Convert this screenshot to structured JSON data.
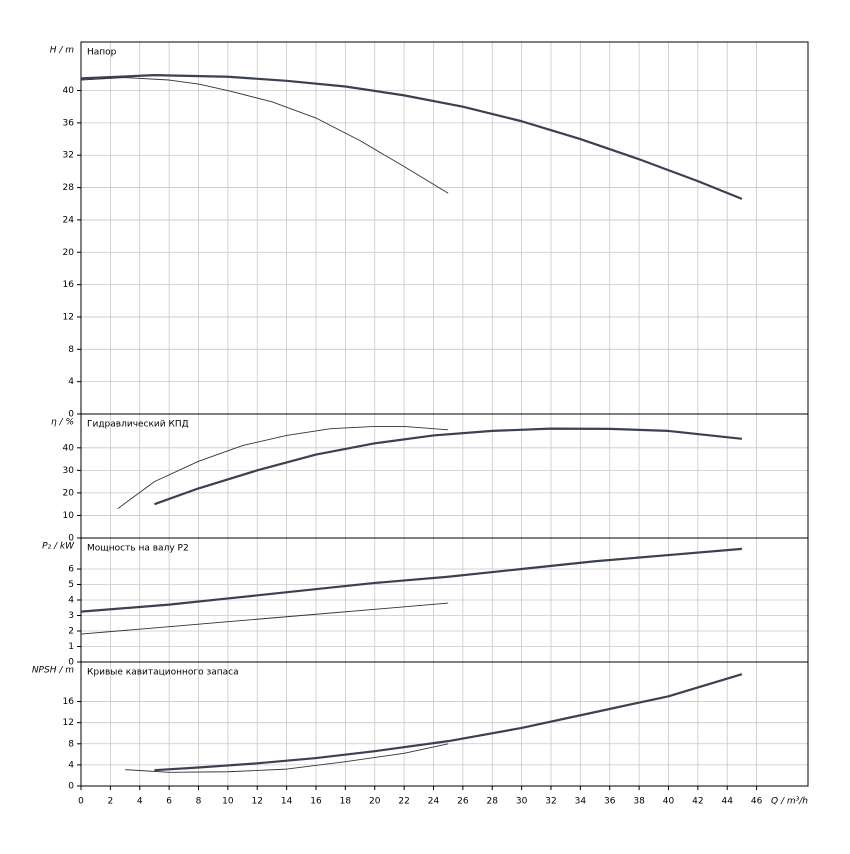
{
  "chart_data": [
    {
      "type": "line",
      "title": "Напор",
      "y_label": "H / m",
      "xlim": [
        0,
        49.5
      ],
      "xticks": [
        0,
        2,
        4,
        6,
        8,
        10,
        12,
        14,
        16,
        18,
        20,
        22,
        24,
        26,
        28,
        30,
        32,
        34,
        36,
        38,
        40,
        42,
        44,
        46
      ],
      "ylim": [
        0,
        46
      ],
      "yticks": [
        0,
        4,
        8,
        12,
        16,
        20,
        24,
        28,
        32,
        36,
        40
      ],
      "grid": true,
      "series": [
        {
          "color": "#3a4150",
          "linewidth": 2.2,
          "x": [
            0,
            5,
            10,
            14,
            18,
            22,
            26,
            30,
            34,
            38,
            42,
            45
          ],
          "values": [
            41.5,
            41.9,
            41.7,
            41.2,
            40.5,
            39.4,
            38,
            36.2,
            34,
            31.5,
            28.8,
            26.6
          ]
        },
        {
          "color": "#333333",
          "linewidth": 0.9,
          "x": [
            0,
            3,
            6,
            8,
            10,
            13,
            16,
            19,
            22,
            25
          ],
          "values": [
            41.3,
            41.6,
            41.3,
            40.8,
            40,
            38.6,
            36.6,
            33.8,
            30.6,
            27.3
          ]
        }
      ]
    },
    {
      "type": "line",
      "title": "Гидравлический КПД",
      "y_label": "η / %",
      "xlim": [
        0,
        49.5
      ],
      "xticks": [
        0,
        2,
        4,
        6,
        8,
        10,
        12,
        14,
        16,
        18,
        20,
        22,
        24,
        26,
        28,
        30,
        32,
        34,
        36,
        38,
        40,
        42,
        44,
        46
      ],
      "ylim": [
        0,
        55
      ],
      "yticks": [
        0,
        10,
        20,
        30,
        40
      ],
      "grid": true,
      "series": [
        {
          "color": "#3a4150",
          "linewidth": 2.2,
          "x": [
            5,
            8,
            12,
            16,
            20,
            24,
            28,
            32,
            36,
            40,
            45
          ],
          "values": [
            15,
            22,
            30,
            37,
            42,
            45.5,
            47.5,
            48.5,
            48.4,
            47.5,
            44
          ]
        },
        {
          "color": "#333333",
          "linewidth": 0.9,
          "x": [
            2.5,
            5,
            8,
            11,
            14,
            17,
            20,
            22,
            25
          ],
          "values": [
            13,
            25,
            34,
            41,
            45.5,
            48.5,
            49.5,
            49.5,
            48
          ]
        }
      ]
    },
    {
      "type": "line",
      "title": "Мощность на валу P2",
      "y_label": "P₂ / kW",
      "xlim": [
        0,
        49.5
      ],
      "xticks": [
        0,
        2,
        4,
        6,
        8,
        10,
        12,
        14,
        16,
        18,
        20,
        22,
        24,
        26,
        28,
        30,
        32,
        34,
        36,
        38,
        40,
        42,
        44,
        46
      ],
      "ylim": [
        0,
        8
      ],
      "yticks": [
        0,
        1,
        2,
        3,
        4,
        5,
        6
      ],
      "grid": true,
      "series": [
        {
          "color": "#3a4150",
          "linewidth": 2.2,
          "x": [
            0,
            6,
            10,
            15,
            20,
            25,
            30,
            35,
            40,
            45
          ],
          "values": [
            3.25,
            3.7,
            4.1,
            4.6,
            5.1,
            5.5,
            6.0,
            6.5,
            6.9,
            7.3
          ]
        },
        {
          "color": "#333333",
          "linewidth": 0.9,
          "x": [
            0,
            5,
            10,
            15,
            20,
            25
          ],
          "values": [
            1.8,
            2.2,
            2.6,
            3.0,
            3.4,
            3.8
          ]
        }
      ]
    },
    {
      "type": "line",
      "title": "Кривые кавитационного запаса",
      "y_label": "NPSH / m",
      "x_label": "Q / m³/h",
      "xlim": [
        0,
        49.5
      ],
      "xticks": [
        0,
        2,
        4,
        6,
        8,
        10,
        12,
        14,
        16,
        18,
        20,
        22,
        24,
        26,
        28,
        30,
        32,
        34,
        36,
        38,
        40,
        42,
        44,
        46
      ],
      "ylim": [
        0,
        23.5
      ],
      "yticks": [
        0,
        4,
        8,
        12,
        16
      ],
      "grid": true,
      "show_xtick_labels": true,
      "series": [
        {
          "color": "#3a4150",
          "linewidth": 2.2,
          "x": [
            5,
            8,
            12,
            16,
            20,
            25,
            30,
            35,
            40,
            45
          ],
          "values": [
            3,
            3.5,
            4.3,
            5.3,
            6.6,
            8.5,
            11,
            14,
            17,
            21.2
          ]
        },
        {
          "color": "#333333",
          "linewidth": 0.9,
          "x": [
            3,
            6,
            10,
            14,
            18,
            22,
            25
          ],
          "values": [
            3.1,
            2.6,
            2.7,
            3.2,
            4.6,
            6.2,
            8
          ]
        }
      ]
    }
  ]
}
